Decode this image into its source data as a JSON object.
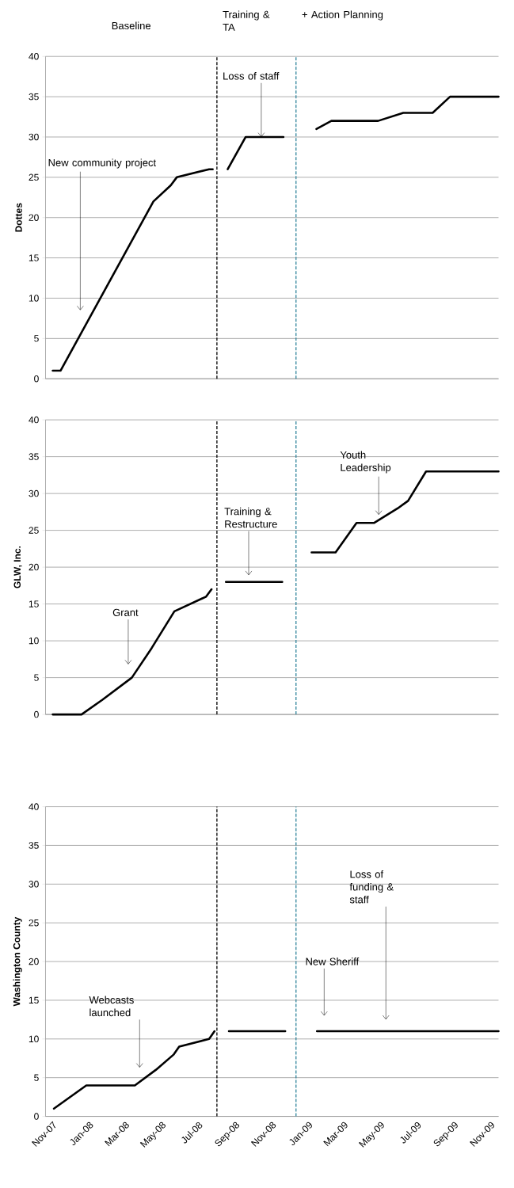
{
  "chart_data": [
    {
      "type": "line",
      "ylabel": "Dottes",
      "xlim": [
        "2007-10-20",
        "2009-11-14"
      ],
      "ylim": [
        0,
        40
      ],
      "yticks": [
        0,
        5,
        10,
        15,
        20,
        25,
        30,
        35,
        40
      ],
      "grid": "y",
      "tick_labels": "y",
      "series": [
        {
          "color": "#000000",
          "x": [
            "2007-11-01",
            "2007-11-14",
            "2008-04-17",
            "2008-05-16",
            "2008-05-26",
            "2008-07-19",
            "2008-07-25",
            "2008-08-05",
            "2008-08-19",
            "2008-09-18",
            "2008-11-20",
            "2008-12-15",
            "2009-01-14",
            "2009-02-08",
            "2009-04-27",
            "2009-06-08",
            "2009-07-27",
            "2009-08-25",
            "2009-11-14"
          ],
          "values": [
            1,
            1,
            22,
            24,
            25,
            26,
            26,
            null,
            26,
            30,
            30,
            null,
            31,
            32,
            32,
            33,
            33,
            35,
            35
          ]
        }
      ],
      "ref_lines": [
        {
          "axis": "x",
          "value": "2008-08-01",
          "color": "#000000",
          "line_style": "dashed"
        },
        {
          "axis": "x",
          "value": "2008-12-11",
          "color": "#31859c",
          "line_style": "dashed"
        }
      ],
      "annotations": [
        "Baseline",
        "Training & TA",
        "+ Action Planning",
        "New community project",
        {
          "text": "Loss of staff",
          "x": "2008-10-14",
          "y": 30
        }
      ]
    },
    {
      "type": "line",
      "ylabel": "GLW, Inc.",
      "xlim": [
        "2007-10-20",
        "2009-11-14"
      ],
      "ylim": [
        0,
        40
      ],
      "yticks": [
        0,
        5,
        10,
        15,
        20,
        25,
        30,
        35,
        40
      ],
      "grid": "y",
      "tick_labels": "y",
      "series": [
        {
          "color": "#000000",
          "x": [
            "2007-11-01",
            "2007-12-19",
            "2008-01-23",
            "2008-03-12",
            "2008-04-14",
            "2008-05-22",
            "2008-07-14",
            "2008-07-23",
            "2008-08-05",
            "2008-08-16",
            "2008-11-18",
            "2008-12-15",
            "2009-01-06",
            "2009-02-15",
            "2009-03-22",
            "2009-04-20",
            "2009-05-30",
            "2009-06-16",
            "2009-07-16",
            "2009-11-14"
          ],
          "values": [
            0,
            0,
            2,
            5,
            9,
            14,
            16,
            17,
            null,
            18,
            18,
            null,
            22,
            22,
            26,
            26,
            28,
            29,
            33,
            33
          ]
        }
      ],
      "ref_lines": [
        {
          "axis": "x",
          "value": "2008-08-01",
          "color": "#000000",
          "line_style": "dashed"
        },
        {
          "axis": "x",
          "value": "2008-12-11",
          "color": "#31859c",
          "line_style": "dashed"
        }
      ],
      "annotations": [
        "Grant",
        "Training & Restructure",
        {
          "text": "Youth Leadership",
          "x": "2009-04-28",
          "y": 27.1
        }
      ]
    },
    {
      "type": "line",
      "ylabel": "Washington County",
      "xlim": [
        "2007-10-20",
        "2009-11-14"
      ],
      "ylim": [
        0,
        40
      ],
      "yticks": [
        0,
        5,
        10,
        15,
        20,
        25,
        30,
        35,
        40
      ],
      "grid": "y",
      "xticks": [
        {
          "value": "2007-11-01",
          "label": "Nov-07"
        },
        {
          "value": "2008-01-01",
          "label": "Jan-08"
        },
        {
          "value": "2008-03-01",
          "label": "Mar-08"
        },
        {
          "value": "2008-05-01",
          "label": "May-08"
        },
        {
          "value": "2008-07-01",
          "label": "Jul-08"
        },
        {
          "value": "2008-09-01",
          "label": "Sep-08"
        },
        {
          "value": "2008-11-01",
          "label": "Nov-08"
        },
        {
          "value": "2009-01-01",
          "label": "Jan-09"
        },
        {
          "value": "2009-03-01",
          "label": "Mar-09"
        },
        {
          "value": "2009-05-01",
          "label": "May-09"
        },
        {
          "value": "2009-07-01",
          "label": "Jul-09"
        },
        {
          "value": "2009-09-01",
          "label": "Sep-09"
        },
        {
          "value": "2009-11-01",
          "label": "Nov-09"
        }
      ],
      "series": [
        {
          "color": "#000000",
          "x": [
            "2007-11-03",
            "2007-11-21",
            "2007-12-27",
            "2008-03-17",
            "2008-04-21",
            "2008-05-21",
            "2008-05-30",
            "2008-07-19",
            "2008-07-28",
            "2008-08-05",
            "2008-08-21",
            "2008-11-23",
            "2008-12-15",
            "2009-01-15",
            "2009-11-14"
          ],
          "values": [
            1,
            2,
            4,
            4,
            6,
            8,
            9,
            10,
            11,
            null,
            11,
            11,
            null,
            11,
            11
          ]
        }
      ],
      "ref_lines": [
        {
          "axis": "x",
          "value": "2008-08-01",
          "color": "#000000",
          "line_style": "dashed"
        },
        {
          "axis": "x",
          "value": "2008-12-11",
          "color": "#31859c",
          "line_style": "dashed"
        }
      ],
      "annotations": [
        "Webcasts launched",
        "New Sheriff",
        "Loss of funding & staff"
      ]
    }
  ]
}
